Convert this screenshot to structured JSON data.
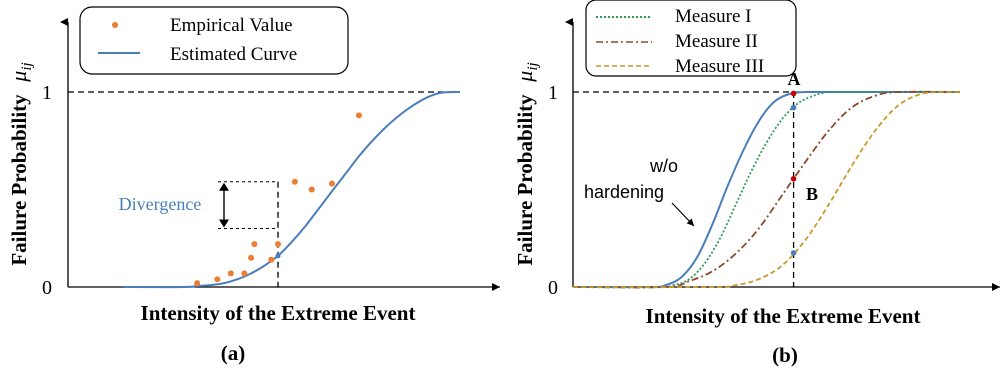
{
  "chart_data": [
    {
      "panel_label": "(a)",
      "type": "line+scatter",
      "xlabel": "Intensity of the Extreme Event",
      "ylabel": "Failure Probability",
      "ylabel_symbol_base": "μ",
      "ylabel_symbol_sub": "ij",
      "yticks": [
        "0",
        "1"
      ],
      "ylim": [
        0,
        1
      ],
      "xlim": [
        0,
        1
      ],
      "legend": {
        "placement": "top-left",
        "entries": [
          {
            "label": "Empirical Value",
            "marker": "dot",
            "color": "#ED7D31"
          },
          {
            "label": "Estimated Curve",
            "marker": "line",
            "color": "#4A7EBB"
          }
        ]
      },
      "annotation": "Divergence",
      "series": [
        {
          "name": "Estimated Curve",
          "color": "#4A7EBB",
          "x": [
            0.0,
            0.18,
            0.22,
            0.26,
            0.3,
            0.34,
            0.38,
            0.42,
            0.46,
            0.5,
            0.54,
            0.58,
            0.62,
            0.66,
            0.7,
            0.74,
            0.78,
            0.82,
            0.86,
            0.9,
            0.94,
            0.98,
            1.0
          ],
          "y": [
            0.0,
            0.0,
            0.005,
            0.01,
            0.02,
            0.04,
            0.07,
            0.11,
            0.16,
            0.23,
            0.31,
            0.4,
            0.49,
            0.58,
            0.67,
            0.75,
            0.82,
            0.88,
            0.93,
            0.97,
            0.995,
            1.0,
            1.0
          ]
        },
        {
          "name": "Empirical Value",
          "color": "#ED7D31",
          "x": [
            0.22,
            0.28,
            0.32,
            0.36,
            0.38,
            0.39,
            0.44,
            0.46,
            0.51,
            0.56,
            0.62,
            0.7
          ],
          "y": [
            0.02,
            0.04,
            0.07,
            0.07,
            0.15,
            0.22,
            0.14,
            0.22,
            0.54,
            0.5,
            0.53,
            0.88
          ]
        }
      ],
      "reference": {
        "x": 0.46,
        "y_low": 0.3,
        "y_high": 0.54
      }
    },
    {
      "panel_label": "(b)",
      "type": "line",
      "xlabel": "Intensity of the Extreme Event",
      "ylabel": "Failure Probability",
      "ylabel_symbol_base": "μ",
      "ylabel_symbol_sub": "ij",
      "yticks": [
        "0",
        "1"
      ],
      "ylim": [
        0,
        1
      ],
      "xlim": [
        0,
        1
      ],
      "legend": {
        "placement": "top-left",
        "entries": [
          {
            "label": "Measure I",
            "style": "dotted",
            "color": "#2E9B57"
          },
          {
            "label": "Measure II",
            "style": "dash-dot",
            "color": "#8B4A2B"
          },
          {
            "label": "Measure III",
            "style": "dashed",
            "color": "#C9992A"
          }
        ]
      },
      "annotations": {
        "point_a": "A",
        "point_b": "B",
        "curve_label_1": "w/o",
        "curve_label_2": "hardening"
      },
      "reference": {
        "x": 0.57
      },
      "series": [
        {
          "name": "w/o hardening",
          "style": "solid",
          "color": "#4A7EBB",
          "x": [
            0.0,
            0.2,
            0.24,
            0.28,
            0.32,
            0.36,
            0.4,
            0.44,
            0.48,
            0.52,
            0.56,
            0.6,
            0.64,
            1.0
          ],
          "y": [
            0.0,
            0.0,
            0.01,
            0.05,
            0.15,
            0.32,
            0.52,
            0.7,
            0.85,
            0.95,
            0.99,
            1.0,
            1.0,
            1.0
          ]
        },
        {
          "name": "Measure I",
          "style": "dotted",
          "color": "#2E9B57",
          "x": [
            0.0,
            0.22,
            0.26,
            0.3,
            0.34,
            0.38,
            0.42,
            0.46,
            0.5,
            0.54,
            0.58,
            0.62,
            0.66,
            0.7,
            1.0
          ],
          "y": [
            0.0,
            0.0,
            0.01,
            0.04,
            0.12,
            0.25,
            0.42,
            0.59,
            0.74,
            0.86,
            0.94,
            0.98,
            1.0,
            1.0,
            1.0
          ]
        },
        {
          "name": "Measure II",
          "style": "dash-dot",
          "color": "#8B4A2B",
          "x": [
            0.0,
            0.24,
            0.3,
            0.36,
            0.42,
            0.48,
            0.54,
            0.6,
            0.66,
            0.72,
            0.78,
            0.84,
            1.0
          ],
          "y": [
            0.0,
            0.0,
            0.03,
            0.08,
            0.17,
            0.3,
            0.47,
            0.64,
            0.8,
            0.92,
            0.98,
            1.0,
            1.0
          ]
        },
        {
          "name": "Measure III",
          "style": "dashed",
          "color": "#C9992A",
          "x": [
            0.0,
            0.36,
            0.42,
            0.48,
            0.54,
            0.6,
            0.66,
            0.72,
            0.78,
            0.84,
            0.9,
            0.96,
            1.0
          ],
          "y": [
            0.0,
            0.0,
            0.01,
            0.04,
            0.11,
            0.24,
            0.42,
            0.62,
            0.8,
            0.93,
            0.99,
            1.0,
            1.0
          ]
        }
      ]
    }
  ]
}
